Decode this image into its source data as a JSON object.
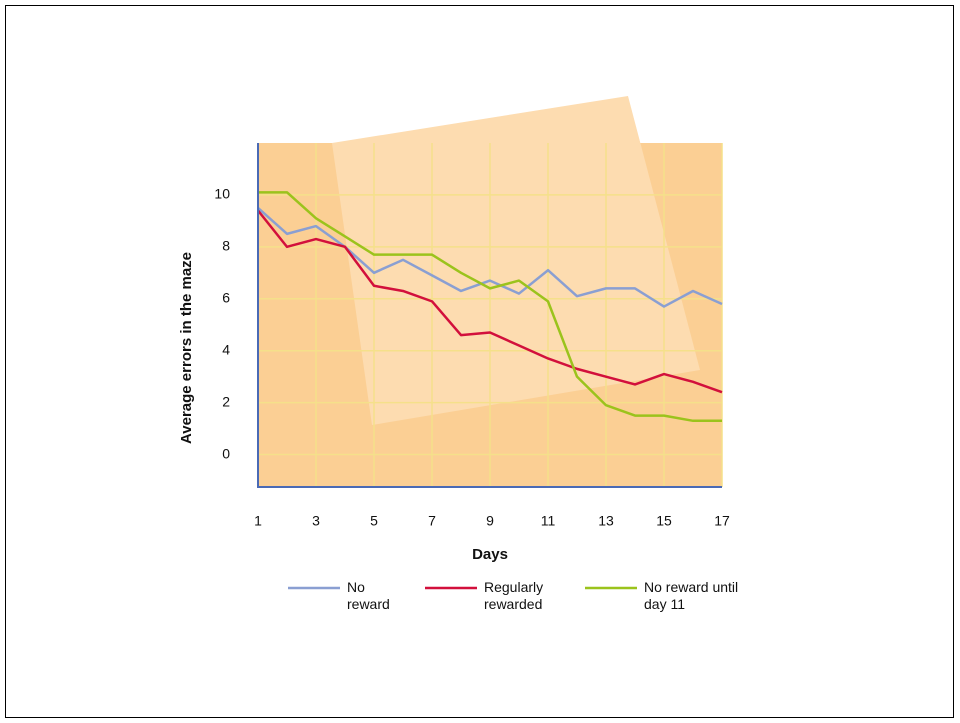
{
  "chart_data": {
    "type": "line",
    "x_label": "Days",
    "y_label": "Average errors in the maze",
    "x": [
      1,
      2,
      3,
      4,
      5,
      6,
      7,
      8,
      9,
      10,
      11,
      12,
      13,
      14,
      15,
      16,
      17
    ],
    "xlim": [
      1,
      17
    ],
    "xticks": [
      1,
      3,
      5,
      7,
      9,
      11,
      13,
      15,
      17
    ],
    "ylim": [
      -1.25,
      12
    ],
    "yticks": [
      0,
      2,
      4,
      6,
      8,
      10
    ],
    "grid": true,
    "series": [
      {
        "name": "No reward",
        "color": "#8a9fd2",
        "values": [
          9.5,
          8.5,
          8.8,
          8.0,
          7.0,
          7.5,
          6.9,
          6.3,
          6.7,
          6.2,
          7.1,
          6.1,
          6.4,
          6.4,
          5.7,
          6.3,
          5.8
        ]
      },
      {
        "name": "Regularly rewarded",
        "color": "#d2103c",
        "values": [
          9.4,
          8.0,
          8.3,
          8.0,
          6.5,
          6.3,
          5.9,
          4.6,
          4.7,
          4.2,
          3.7,
          3.3,
          3.0,
          2.7,
          3.1,
          2.8,
          2.4
        ]
      },
      {
        "name": "No reward until day 11",
        "color": "#9bc31c",
        "values": [
          10.1,
          10.1,
          9.1,
          8.4,
          7.7,
          7.7,
          7.7,
          7.0,
          6.4,
          6.7,
          5.9,
          3.0,
          1.9,
          1.5,
          1.5,
          1.3,
          1.3
        ]
      }
    ]
  }
}
